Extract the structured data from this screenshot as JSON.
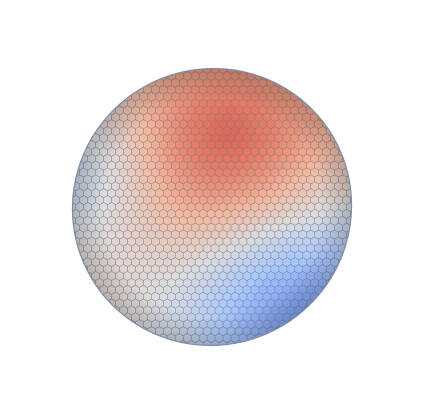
{
  "figure": {
    "kind": "3D tessellated ellipsoid surface render",
    "colormap": {
      "name": "coolwarm",
      "stops": [
        "#3b4cc0",
        "#6f92f3",
        "#aac7fd",
        "#dddcdc",
        "#f7b79b",
        "#e7745b",
        "#b40426"
      ]
    },
    "mesh": {
      "cell_shape": "hexagon",
      "edge_color": "#6b7f95"
    },
    "background_color": "#ffffff"
  }
}
